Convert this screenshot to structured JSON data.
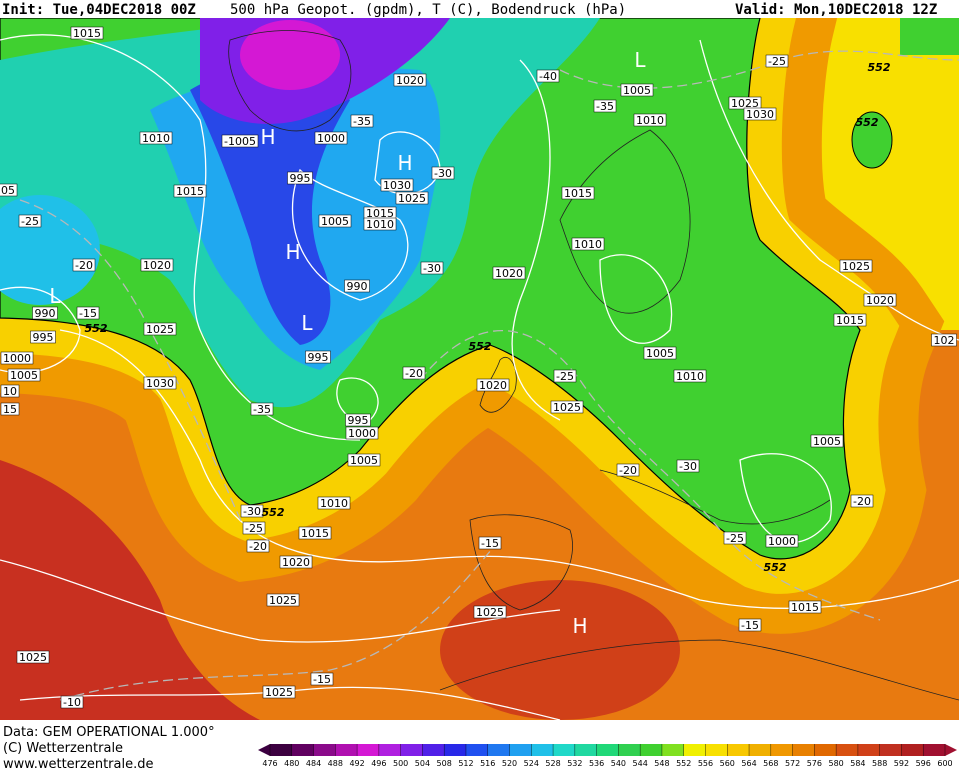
{
  "header": {
    "init": "Init: Tue,04DEC2018 00Z",
    "title": "500 hPa Geopot. (gpdm), T (C), Bodendruck (hPa)",
    "valid": "Valid: Mon,10DEC2018 12Z"
  },
  "map": {
    "labels": [
      "1015",
      "1010",
      "1015",
      "1020",
      "1025",
      "1030",
      "990",
      "995",
      "1000",
      "1005",
      "10",
      "15",
      "05",
      "-25",
      "-20",
      "-15",
      "L",
      "552",
      "H",
      "-1005",
      "1000",
      "995",
      "1005",
      "1015",
      "1010",
      "1030",
      "1025",
      "H",
      "-30",
      "-35",
      "1020",
      "H",
      "990",
      "L",
      "995",
      "-30",
      "1020",
      "-40",
      "L",
      "1005",
      "1010",
      "-35",
      "1015",
      "1010",
      "552",
      "-20",
      "1020",
      "-25",
      "1025",
      "995",
      "1000",
      "1005",
      "1010",
      "-35",
      "-30",
      "552",
      "-25",
      "-20",
      "1015",
      "1020",
      "1025",
      "1025",
      "1025",
      "-15",
      "-10",
      "-15",
      "1025",
      "H",
      "-20",
      "-30",
      "1005",
      "1010",
      "-25",
      "1000",
      "552",
      "1015",
      "-15",
      "1005",
      "-20",
      "1025",
      "1020",
      "1015",
      "102",
      "-25",
      "552",
      "1025",
      "1030",
      "552"
    ]
  },
  "footer": {
    "source": "Data: GEM OPERATIONAL 1.000°",
    "copyright": "(C) Wetterzentrale",
    "url": "www.wetterzentrale.de"
  },
  "colorbar": {
    "ticks": [
      476,
      480,
      484,
      488,
      492,
      496,
      500,
      504,
      508,
      512,
      516,
      520,
      524,
      528,
      532,
      536,
      540,
      544,
      548,
      552,
      556,
      560,
      564,
      568,
      572,
      576,
      580,
      584,
      588,
      592,
      596,
      600
    ],
    "colors": [
      "#3c0040",
      "#600060",
      "#8a0a8a",
      "#b010b0",
      "#d418d4",
      "#b020e0",
      "#8020e8",
      "#5020e8",
      "#2828e8",
      "#2050f0",
      "#2078f0",
      "#20a0f0",
      "#20c0e8",
      "#20d8c8",
      "#20d8a0",
      "#20d878",
      "#30d050",
      "#40d030",
      "#80e020",
      "#f0f000",
      "#f8e000",
      "#f8c800",
      "#f0b000",
      "#f09800",
      "#e88000",
      "#e06800",
      "#d85010",
      "#d04018",
      "#c03020",
      "#b02020",
      "#a01030"
    ]
  }
}
